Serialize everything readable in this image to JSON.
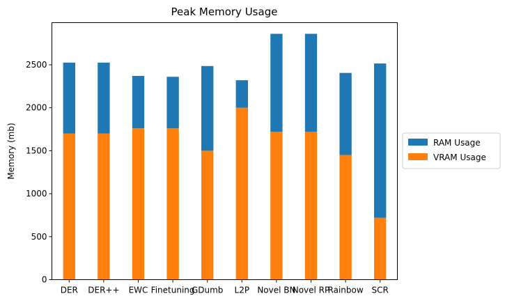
{
  "chart_data": {
    "type": "bar",
    "stacked": true,
    "title": "Peak Memory Usage",
    "xlabel": "",
    "ylabel": "Memory (mb)",
    "ylim": [
      0,
      2990
    ],
    "yticks": [
      0,
      500,
      1000,
      1500,
      2000,
      2500
    ],
    "categories": [
      "DER",
      "DER++",
      "EWC",
      "Finetuning",
      "GDumb",
      "L2P",
      "Novel BN",
      "Novel RP",
      "Rainbow",
      "SCR"
    ],
    "series": [
      {
        "name": "VRAM Usage",
        "color": "#ff7f0e",
        "values": [
          1700,
          1700,
          1760,
          1760,
          1500,
          2000,
          1720,
          1720,
          1450,
          720
        ]
      },
      {
        "name": "RAM Usage",
        "color": "#1f77b4",
        "values": [
          825,
          825,
          610,
          600,
          985,
          320,
          1140,
          1140,
          955,
          1795
        ]
      }
    ],
    "legend": {
      "placement": "center-right-outside",
      "entries": [
        "RAM Usage",
        "VRAM Usage"
      ]
    },
    "grid": false
  }
}
